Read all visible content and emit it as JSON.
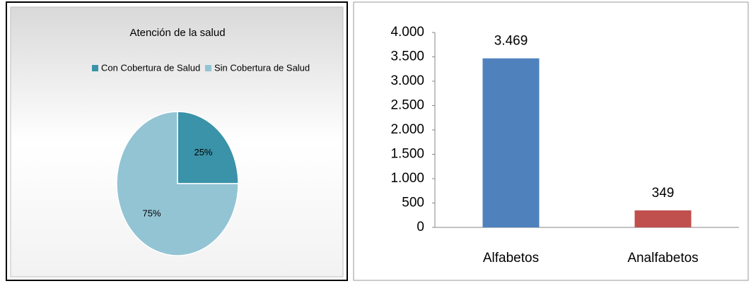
{
  "chart_data": [
    {
      "type": "pie",
      "title": "Atención de la salud",
      "categories": [
        "Con Cobertura de Salud",
        "Sin Cobertura de Salud"
      ],
      "values": [
        25,
        75
      ],
      "value_labels": [
        "25%",
        "75%"
      ],
      "colors": [
        "#3a93a8",
        "#93c4d4"
      ],
      "legend": "top"
    },
    {
      "type": "bar",
      "categories": [
        "Alfabetos",
        "Analfabetos"
      ],
      "values": [
        3469,
        349
      ],
      "value_labels": [
        "3.469",
        "349"
      ],
      "colors": [
        "#4f81bd",
        "#c0504d"
      ],
      "ylim": [
        0,
        4000
      ],
      "yticks": [
        0,
        500,
        {
          "value": 1000,
          "label": "1.000"
        },
        {
          "value": 1500,
          "label": "1.500"
        },
        {
          "value": 2000,
          "label": "2.000"
        },
        {
          "value": 2500,
          "label": "2.500"
        },
        {
          "value": 3000,
          "label": "3.000"
        },
        {
          "value": 3500,
          "label": "3.500"
        },
        {
          "value": 4000,
          "label": "4.000"
        }
      ]
    }
  ]
}
